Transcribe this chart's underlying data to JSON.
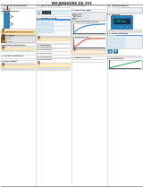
{
  "title": "BD|SENSORS DS 351",
  "subtitle": "Operating instructions",
  "bg_color": "#ffffff",
  "warning_color": "#f5a623",
  "table_header_color": "#4a90d9",
  "sensor_blue": "#2e86c1",
  "display_blue": "#2980b9",
  "text_color": "#1a1a1a",
  "medium_gray": "#cccccc",
  "dark_gray": "#888888"
}
